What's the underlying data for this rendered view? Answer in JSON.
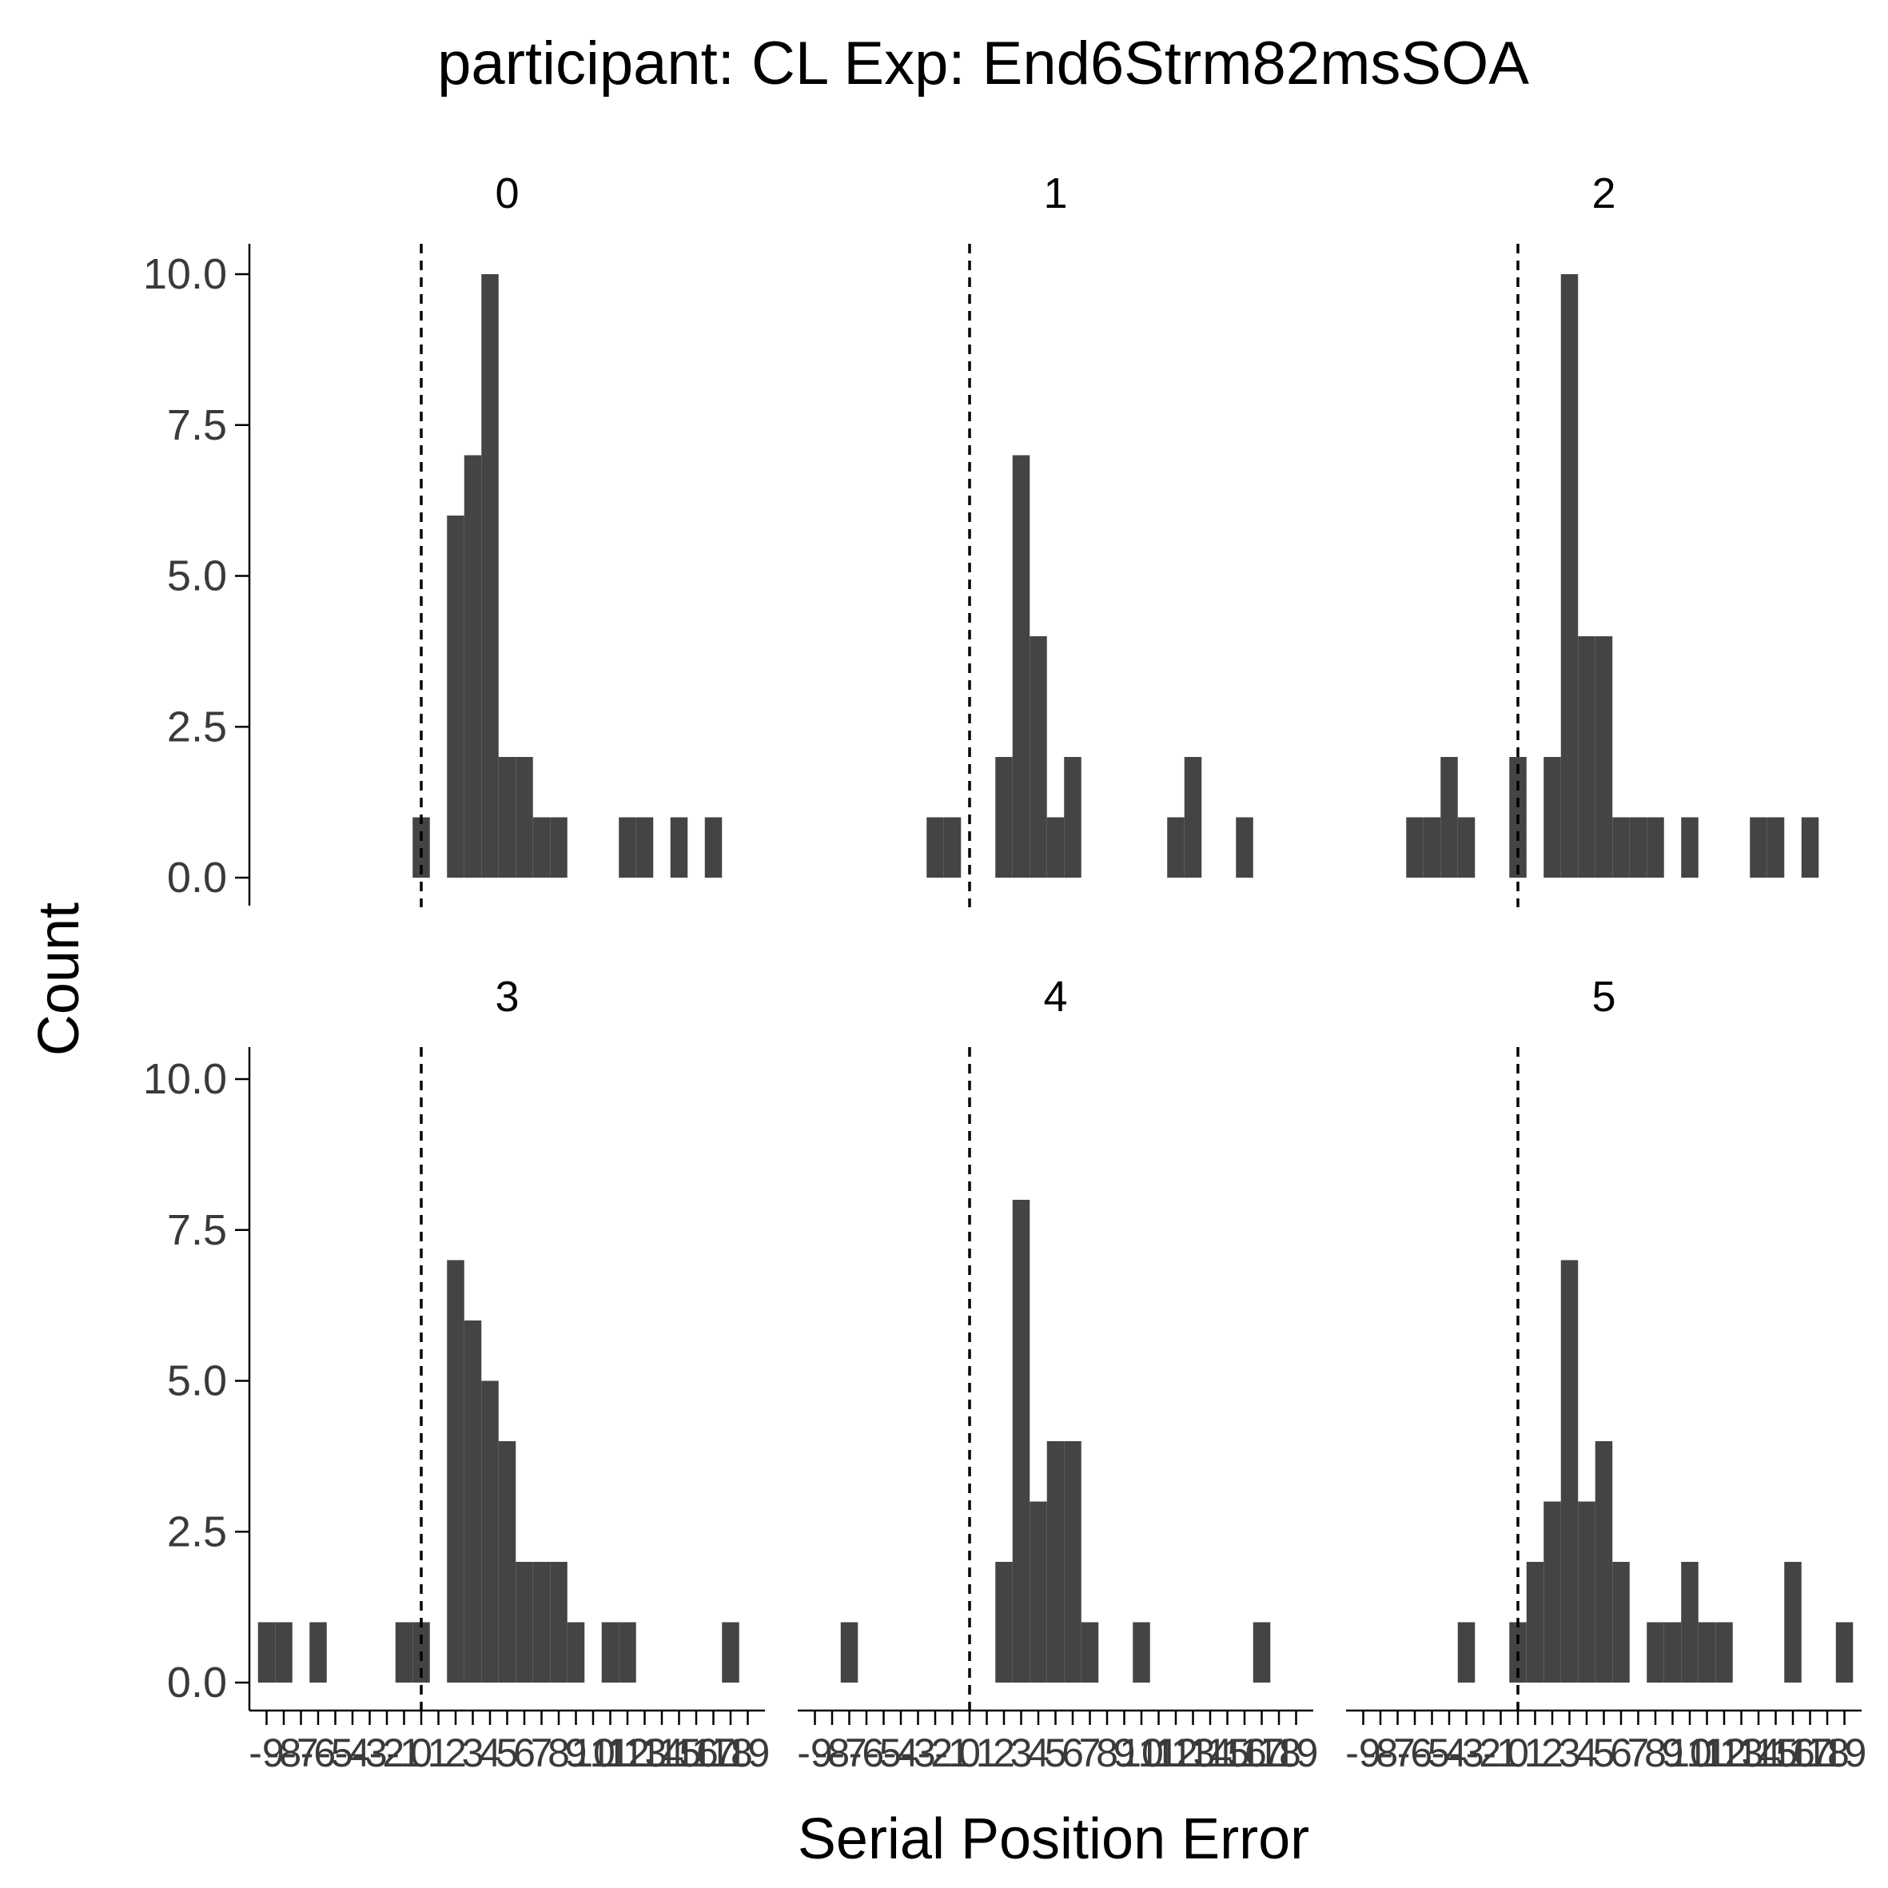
{
  "title": "participant: CL Exp: End6Strm82msSOA",
  "colors": {
    "bar": "#444444",
    "axis": "#000000",
    "tick_text": "#3a3a3a",
    "text": "#000000",
    "background": "#ffffff"
  },
  "chart_data": {
    "type": "bar",
    "subtype": "faceted-histogram",
    "title": "participant: CL Exp: End6Strm82msSOA",
    "xlabel": "Serial Position Error",
    "ylabel": "Count",
    "xlim": [
      -10,
      20
    ],
    "ylim": [
      -0.45,
      10.5
    ],
    "y_ticks": [
      0,
      2.5,
      5,
      7.5,
      10
    ],
    "y_tick_labels": [
      "0.0",
      "2.5",
      "5.0",
      "7.5",
      "10.0"
    ],
    "x_ticks": [
      -9,
      -8,
      -7,
      -6,
      -5,
      -4,
      -3,
      -2,
      -1,
      0,
      1,
      2,
      3,
      4,
      5,
      6,
      7,
      8,
      9,
      10,
      11,
      12,
      13,
      14,
      15,
      16,
      17,
      18,
      19
    ],
    "x_tick_labels": [
      "-9",
      "-8",
      "-7",
      "-6",
      "-5",
      "-4",
      "-3",
      "-2",
      "-1",
      "0",
      "1",
      "2",
      "3",
      "4",
      "5",
      "6",
      "7",
      "8",
      "9",
      "10",
      "11",
      "12",
      "13",
      "14",
      "15",
      "16",
      "17",
      "18",
      "19"
    ],
    "bin_width": 1,
    "reference_line": {
      "x": 0,
      "style": "dashed"
    },
    "grid": false,
    "legend": "none",
    "facets": [
      {
        "label": "0",
        "x": [
          0,
          2,
          3,
          4,
          5,
          6,
          7,
          8,
          12,
          13,
          15,
          17
        ],
        "counts": [
          1,
          6,
          7,
          10,
          2,
          2,
          1,
          1,
          1,
          1,
          1,
          1
        ]
      },
      {
        "label": "1",
        "x": [
          -2,
          -1,
          2,
          3,
          4,
          5,
          6,
          12,
          13,
          16
        ],
        "counts": [
          1,
          1,
          2,
          7,
          4,
          1,
          2,
          1,
          2,
          1
        ]
      },
      {
        "label": "2",
        "x": [
          -6,
          -5,
          -4,
          -3,
          0,
          2,
          3,
          4,
          5,
          6,
          7,
          8,
          10,
          14,
          15,
          17
        ],
        "counts": [
          1,
          1,
          2,
          1,
          2,
          2,
          10,
          4,
          4,
          1,
          1,
          1,
          1,
          1,
          1,
          1
        ]
      },
      {
        "label": "3",
        "x": [
          -9,
          -8,
          -6,
          -1,
          0,
          2,
          3,
          4,
          5,
          6,
          7,
          8,
          9,
          11,
          12,
          18
        ],
        "counts": [
          1,
          1,
          1,
          1,
          1,
          7,
          6,
          5,
          4,
          2,
          2,
          2,
          1,
          1,
          1,
          1
        ]
      },
      {
        "label": "4",
        "x": [
          -7,
          2,
          3,
          4,
          5,
          6,
          7,
          10,
          17
        ],
        "counts": [
          1,
          2,
          8,
          3,
          4,
          4,
          1,
          1,
          1
        ]
      },
      {
        "label": "5",
        "x": [
          -3,
          0,
          1,
          2,
          3,
          4,
          5,
          6,
          8,
          9,
          10,
          11,
          12,
          16,
          19
        ],
        "counts": [
          1,
          1,
          2,
          3,
          7,
          3,
          4,
          2,
          1,
          1,
          2,
          1,
          1,
          2,
          1
        ]
      }
    ]
  }
}
